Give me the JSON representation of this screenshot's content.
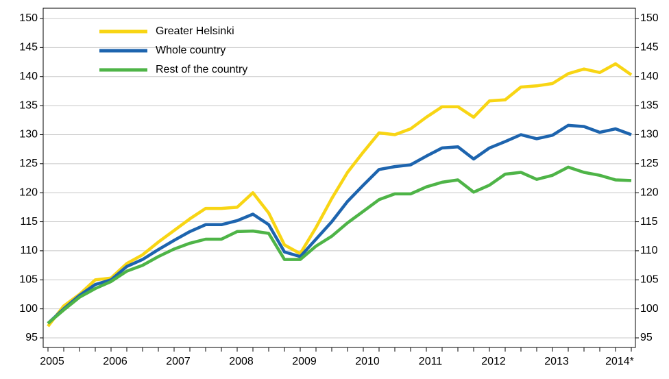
{
  "chart_data": {
    "type": "line",
    "categories": [
      "2005",
      null,
      null,
      null,
      "2006",
      null,
      null,
      null,
      "2007",
      null,
      null,
      null,
      "2008",
      null,
      null,
      null,
      "2009",
      null,
      null,
      null,
      "2010",
      null,
      null,
      null,
      "2011",
      null,
      null,
      null,
      "2012",
      null,
      null,
      null,
      "2013",
      null,
      null,
      null,
      "2014*",
      null
    ],
    "series": [
      {
        "name": "Greater Helsinki",
        "color": "#f8d514",
        "values": [
          97,
          100.5,
          102.5,
          105,
          105.3,
          107.8,
          109.3,
          111.5,
          113.5,
          115.5,
          117.3,
          117.3,
          117.5,
          120,
          116.5,
          111,
          109.5,
          114,
          119,
          123.5,
          127,
          130.3,
          130,
          131,
          133,
          134.8,
          134.8,
          133,
          135.8,
          136,
          138.2,
          138.4,
          138.8,
          140.5,
          141.3,
          140.7,
          142.2,
          140.3
        ]
      },
      {
        "name": "Whole country",
        "color": "#1d64ae",
        "values": [
          97.5,
          100,
          102.3,
          104.2,
          105,
          107.3,
          108.5,
          110.2,
          111.8,
          113.3,
          114.5,
          114.5,
          115.2,
          116.3,
          114.5,
          109.8,
          109,
          112,
          115,
          118.5,
          121.3,
          124,
          124.5,
          124.8,
          126.3,
          127.7,
          127.9,
          125.8,
          127.7,
          128.8,
          130,
          129.3,
          129.9,
          131.6,
          131.4,
          130.4,
          131,
          130
        ]
      },
      {
        "name": "Rest of the country",
        "color": "#4eb447",
        "values": [
          97.5,
          99.8,
          102,
          103.5,
          104.7,
          106.5,
          107.5,
          109,
          110.3,
          111.3,
          112,
          112,
          113.3,
          113.4,
          113,
          108.5,
          108.5,
          110.8,
          112.5,
          114.8,
          116.8,
          118.8,
          119.8,
          119.8,
          121,
          121.8,
          122.2,
          120.1,
          121.3,
          123.2,
          123.5,
          122.3,
          123,
          124.4,
          123.5,
          123,
          122.2,
          122.1
        ]
      }
    ],
    "ylim": [
      95,
      150
    ],
    "yticks": [
      95,
      100,
      105,
      110,
      115,
      120,
      125,
      130,
      135,
      140,
      145,
      150
    ],
    "grid": true,
    "legend": "upper left"
  }
}
